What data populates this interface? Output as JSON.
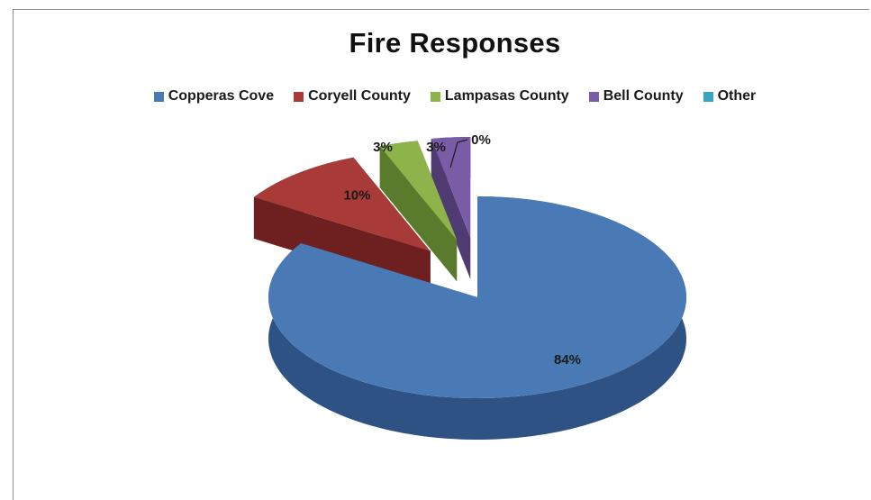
{
  "chart_data": {
    "type": "pie",
    "title": "Fire Responses",
    "legend_position": "top",
    "categories": [
      "Copperas Cove",
      "Coryell County",
      "Lampasas County",
      "Bell County",
      "Other"
    ],
    "values": [
      84,
      10,
      3,
      3,
      0
    ],
    "data_labels": [
      "84%",
      "10%",
      "3%",
      "3%",
      "0%"
    ],
    "colors": [
      "#4a7ab5",
      "#a83a38",
      "#8db34a",
      "#7a5ca6",
      "#3ba3c3"
    ],
    "side_colors": [
      "#2e5283",
      "#6e2020",
      "#5a7a2c",
      "#4f3a72",
      "#247a92"
    ],
    "exploded": [
      false,
      true,
      true,
      true,
      true
    ]
  }
}
